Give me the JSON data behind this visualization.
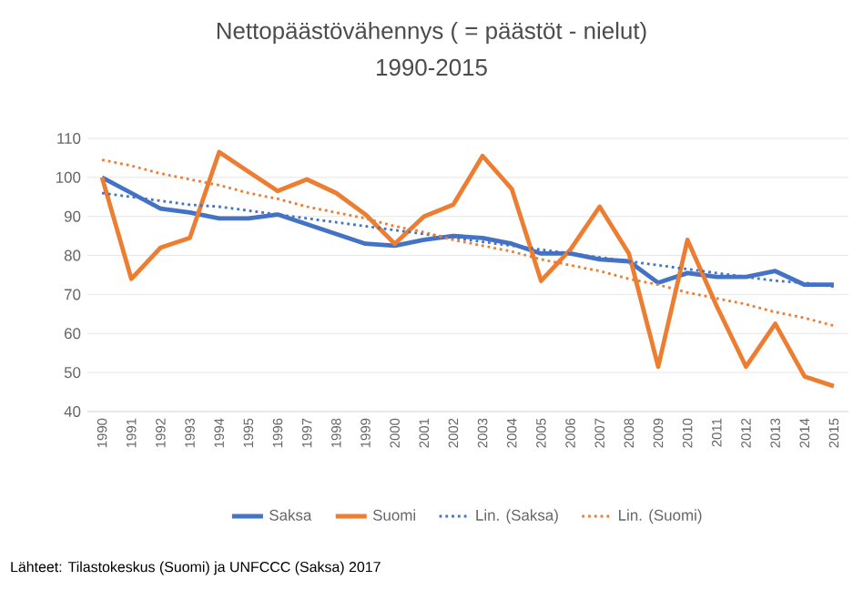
{
  "chart_data": {
    "type": "line",
    "title": "Nettopäästövähennys ( = päästöt - nielut)",
    "subtitle": "1990-2015",
    "categories": [
      "1990",
      "1991",
      "1992",
      "1993",
      "1994",
      "1995",
      "1996",
      "1997",
      "1998",
      "1999",
      "2000",
      "2001",
      "2002",
      "2003",
      "2004",
      "2005",
      "2006",
      "2007",
      "2008",
      "2009",
      "2010",
      "2011",
      "2012",
      "2013",
      "2014",
      "2015"
    ],
    "series": [
      {
        "name": "Saksa",
        "color": "#4472c4",
        "values": [
          100,
          96,
          92,
          91,
          89.5,
          89.5,
          90.5,
          88,
          85.5,
          83,
          82.5,
          84,
          85,
          84.5,
          83,
          80.5,
          80.5,
          79,
          78.5,
          73,
          75.5,
          74.5,
          74.5,
          76,
          72.5,
          72.5
        ]
      },
      {
        "name": "Suomi",
        "color": "#ed7d31",
        "values": [
          100,
          74,
          82,
          84.5,
          106.5,
          101.5,
          96.5,
          99.5,
          96,
          90.5,
          83,
          90,
          93,
          105.5,
          97,
          73.5,
          81.5,
          92.5,
          80.5,
          51.5,
          84,
          67,
          51.5,
          62.5,
          49,
          46.5
        ]
      },
      {
        "name": "Lin. (Saksa)",
        "color": "#4472c4",
        "line_style": "dotted",
        "values": [
          96,
          95,
          94,
          93,
          92.5,
          91.5,
          90.5,
          89.5,
          88.5,
          87.5,
          86.5,
          85.5,
          84.5,
          83.5,
          82.5,
          81.5,
          80.5,
          79.5,
          78.5,
          77.5,
          76.5,
          75.5,
          74.5,
          73.5,
          73,
          72
        ]
      },
      {
        "name": "Lin. (Suomi)",
        "color": "#ed7d31",
        "line_style": "dotted",
        "values": [
          104.5,
          103,
          101,
          99.5,
          98,
          96,
          94.5,
          92.5,
          91,
          89.5,
          87.5,
          86,
          84,
          82.5,
          81,
          79,
          77.5,
          76,
          74,
          72.5,
          70.5,
          69,
          67.5,
          65.5,
          64,
          62
        ]
      }
    ],
    "ylim": [
      40,
      110
    ],
    "yticks": [
      40,
      50,
      60,
      70,
      80,
      90,
      100,
      110
    ],
    "grid": "y",
    "legend": "bottom",
    "line_style": "solid",
    "annotations": [
      "Lähteet: Tilastokeskus (Suomi) ja UNFCCC (Saksa) 2017"
    ]
  }
}
